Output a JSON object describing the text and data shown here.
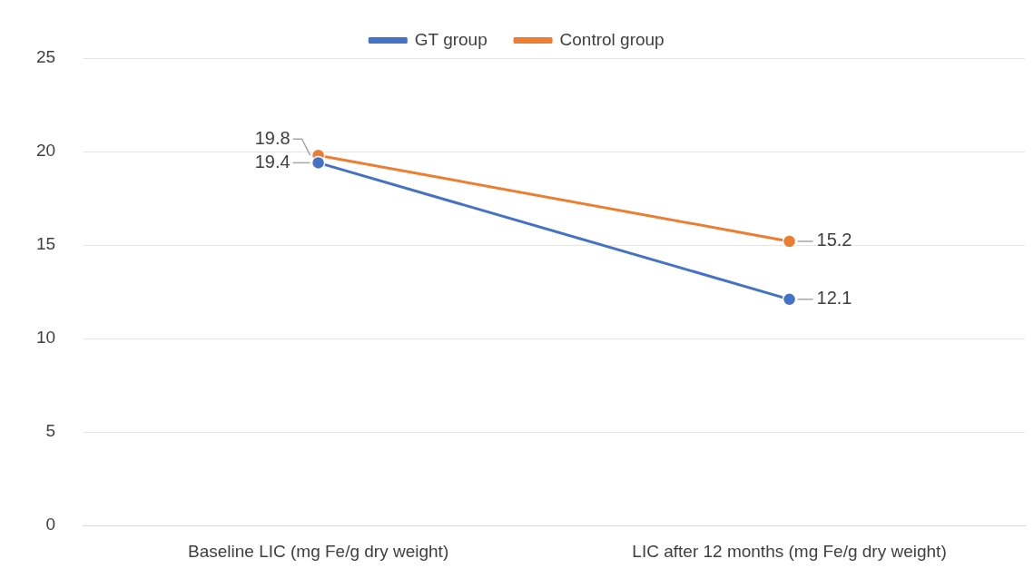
{
  "chart_data": {
    "type": "line",
    "categories": [
      "Baseline LIC (mg Fe/g dry weight)",
      "LIC after 12 months (mg Fe/g dry weight)"
    ],
    "series": [
      {
        "name": "GT group",
        "color": "#4472c4",
        "values": [
          19.4,
          12.1
        ]
      },
      {
        "name": "Control group",
        "color": "#ed7d31",
        "values": [
          19.8,
          15.2
        ]
      }
    ],
    "ylim": [
      0,
      25
    ],
    "yticks": [
      0,
      5,
      10,
      15,
      20,
      25
    ],
    "grid": "y",
    "legend": "top",
    "marker": "circle",
    "line_style": "solid",
    "data_labels": true
  }
}
